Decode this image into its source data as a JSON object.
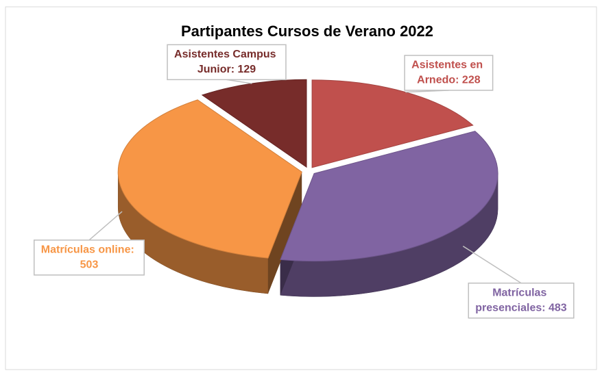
{
  "chart_data": {
    "type": "pie",
    "title": "Partipantes Cursos de Verano 2022",
    "labels": [
      "Asistentes en Arnedo: 228",
      "Matrículas presenciales: 483",
      "Matrículas online: 503",
      "Asistentes Campus Junior: 129"
    ],
    "values": [
      228,
      483,
      503,
      129
    ],
    "colors": [
      "#c0504d",
      "#8064a2",
      "#f79646",
      "#772c2a"
    ]
  }
}
